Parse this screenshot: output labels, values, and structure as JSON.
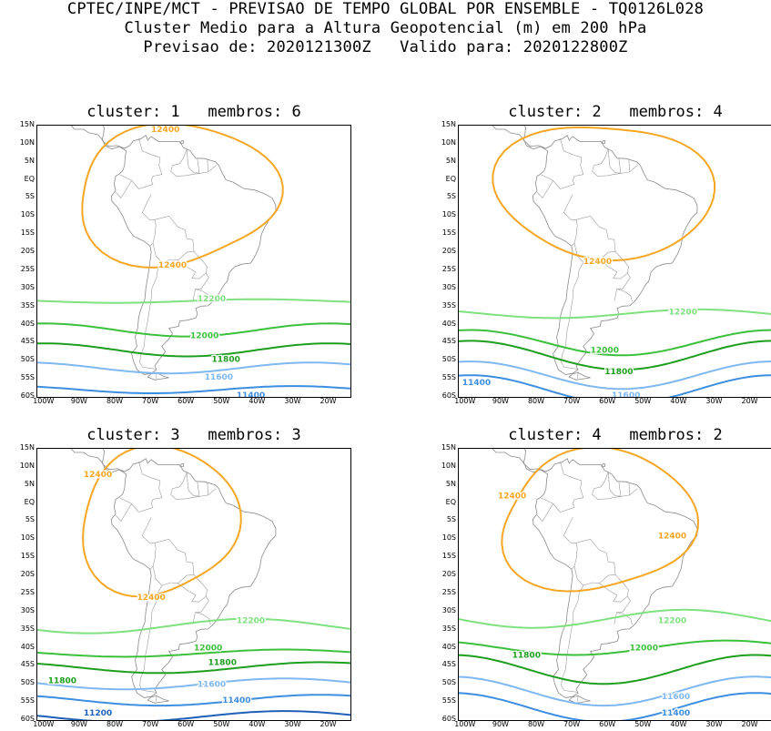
{
  "header": {
    "line1": "CPTEC/INPE/MCT - PREVISAO DE TEMPO GLOBAL POR ENSEMBLE - TQ0126L028",
    "line2": "Cluster Medio para a Altura Geopotencial (m) em 200 hPa",
    "line3": "Previsao de: 2020121300Z   Valido para: 2020122800Z"
  },
  "axes": {
    "lat_labels": [
      "15N",
      "10N",
      "5N",
      "EQ",
      "5S",
      "10S",
      "15S",
      "20S",
      "25S",
      "30S",
      "35S",
      "40S",
      "45S",
      "50S",
      "55S",
      "60S"
    ],
    "lon_labels": [
      "100W",
      "90W",
      "80W",
      "70W",
      "60W",
      "50W",
      "40W",
      "30W",
      "20W"
    ]
  },
  "contour_colors": {
    "12400": "#f5a623",
    "12200": "#7fe07f",
    "12000": "#3cc03c",
    "11800": "#1e9e1e",
    "11600": "#7fb8f0",
    "11400": "#3d8ee0",
    "11200": "#1f5fb8"
  },
  "panels": [
    {
      "title": "cluster: 1   membros: 6",
      "labels": [
        {
          "text": "12400",
          "contour": "12400"
        },
        {
          "text": "12400",
          "contour": "12400"
        },
        {
          "text": "12200",
          "contour": "12200"
        },
        {
          "text": "12000",
          "contour": "12000"
        },
        {
          "text": "11800",
          "contour": "11800"
        },
        {
          "text": "11600",
          "contour": "11600"
        },
        {
          "text": "11400",
          "contour": "11400"
        }
      ]
    },
    {
      "title": "cluster: 2   membros: 4",
      "labels": [
        {
          "text": "12400",
          "contour": "12400"
        },
        {
          "text": "12200",
          "contour": "12200"
        },
        {
          "text": "12000",
          "contour": "12000"
        },
        {
          "text": "11800",
          "contour": "11800"
        },
        {
          "text": "11400",
          "contour": "11400"
        },
        {
          "text": "11600",
          "contour": "11600"
        }
      ]
    },
    {
      "title": "cluster: 3   membros: 3",
      "labels": [
        {
          "text": "12400",
          "contour": "12400"
        },
        {
          "text": "12400",
          "contour": "12400"
        },
        {
          "text": "12200",
          "contour": "12200"
        },
        {
          "text": "12000",
          "contour": "12000"
        },
        {
          "text": "11800",
          "contour": "11800"
        },
        {
          "text": "11800",
          "contour": "11800"
        },
        {
          "text": "11600",
          "contour": "11600"
        },
        {
          "text": "11400",
          "contour": "11400"
        },
        {
          "text": "11200",
          "contour": "11200"
        }
      ]
    },
    {
      "title": "cluster: 4   membros: 2",
      "labels": [
        {
          "text": "12400",
          "contour": "12400"
        },
        {
          "text": "12400",
          "contour": "12400"
        },
        {
          "text": "12200",
          "contour": "12200"
        },
        {
          "text": "12000",
          "contour": "12000"
        },
        {
          "text": "11800",
          "contour": "11800"
        },
        {
          "text": "11600",
          "contour": "11600"
        },
        {
          "text": "11400",
          "contour": "11400"
        }
      ]
    }
  ]
}
